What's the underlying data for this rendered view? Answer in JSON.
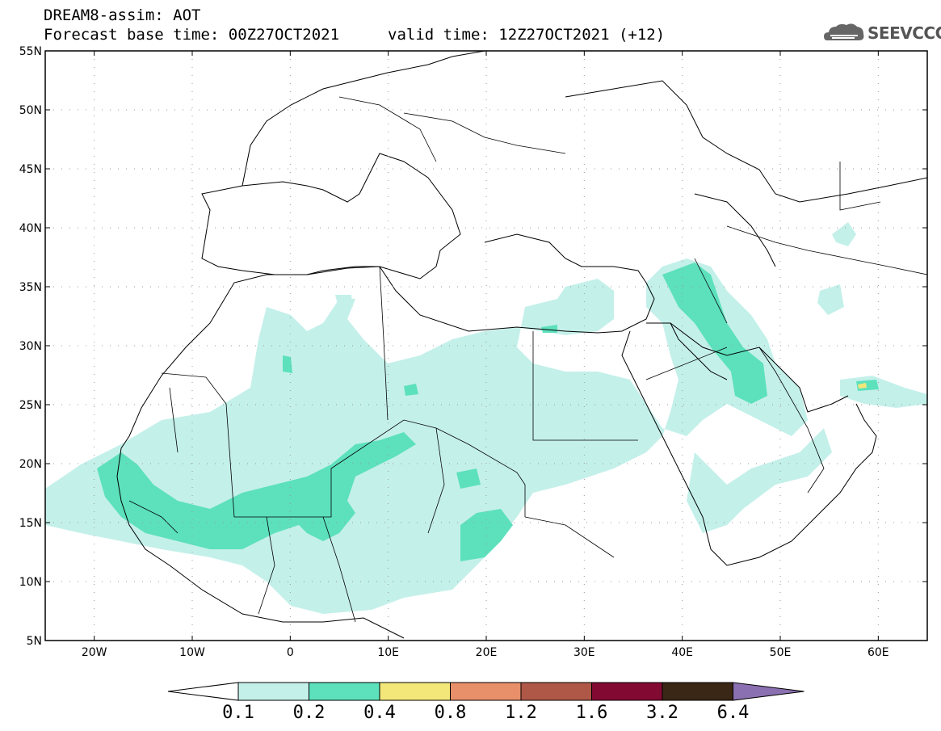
{
  "header": {
    "model_line": "DREAM8-assim: AOT",
    "base_time_line": "Forecast base time: 00Z27OCT2021",
    "valid_time_line": "valid time: 12Z27OCT2021 (+12)"
  },
  "logo": {
    "text": "SEEVCCC",
    "icon": "cloud-logo-icon"
  },
  "map": {
    "lat_labels": [
      "55N",
      "50N",
      "45N",
      "40N",
      "35N",
      "30N",
      "25N",
      "20N",
      "15N",
      "10N",
      "5N"
    ],
    "lon_labels": [
      "20W",
      "10W",
      "0",
      "10E",
      "20E",
      "30E",
      "40E",
      "50E",
      "60E"
    ],
    "lat_range": [
      5,
      55
    ],
    "lon_range": [
      -25,
      65
    ],
    "grid": "dotted"
  },
  "colorbar": {
    "levels": [
      "0.1",
      "0.2",
      "0.4",
      "0.8",
      "1.2",
      "1.6",
      "3.2",
      "6.4"
    ],
    "colors": [
      "#c4f0ea",
      "#5ce1bc",
      "#f3e77a",
      "#e8906a",
      "#b05848",
      "#820a32",
      "#3a2716",
      "#8a70b0"
    ],
    "under_color": "#ffffff",
    "over_color": "#8a70b0"
  },
  "colors": {
    "aot_low": "#c4f0ea",
    "aot_mid": "#5ce1bc",
    "aot_high": "#f3e77a"
  }
}
